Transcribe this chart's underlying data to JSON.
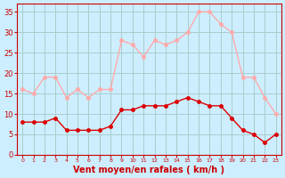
{
  "x": [
    0,
    1,
    2,
    3,
    4,
    5,
    6,
    7,
    8,
    9,
    10,
    11,
    12,
    13,
    14,
    15,
    16,
    17,
    18,
    19,
    20,
    21,
    22,
    23
  ],
  "wind_avg": [
    8,
    8,
    8,
    9,
    6,
    6,
    6,
    6,
    7,
    11,
    11,
    12,
    12,
    12,
    13,
    14,
    13,
    12,
    12,
    9,
    6,
    5,
    3,
    5
  ],
  "wind_gust": [
    16,
    15,
    19,
    19,
    14,
    16,
    14,
    16,
    16,
    28,
    27,
    24,
    28,
    27,
    28,
    30,
    35,
    35,
    32,
    30,
    19,
    19,
    14,
    10
  ],
  "bg_color": "#cceeff",
  "grid_color": "#aacccc",
  "avg_color": "#dd0000",
  "gust_color": "#ffaaaa",
  "xlabel": "Vent moyen/en rafales ( km/h )",
  "xlabel_color": "#cc0000",
  "tick_color": "#cc0000",
  "ylabel_ticks": [
    0,
    5,
    10,
    15,
    20,
    25,
    30,
    35
  ],
  "ylim": [
    0,
    37
  ],
  "xlim": [
    -0.5,
    23.5
  ]
}
